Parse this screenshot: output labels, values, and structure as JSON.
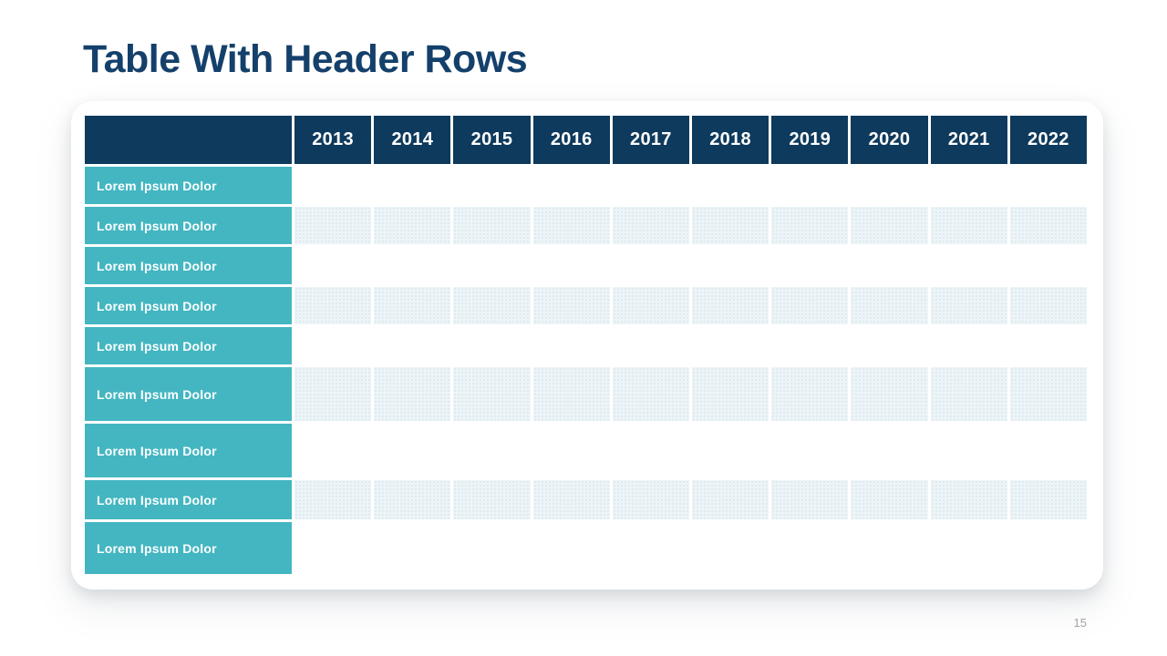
{
  "slide": {
    "title": "Table With Header Rows",
    "page_number": "15"
  },
  "table": {
    "corner_label": "",
    "years": [
      "2013",
      "2014",
      "2015",
      "2016",
      "2017",
      "2018",
      "2019",
      "2020",
      "2021",
      "2022"
    ],
    "rows": [
      {
        "label": "Lorem Ipsum Dolor",
        "striped": false,
        "values": [
          "",
          "",
          "",
          "",
          "",
          "",
          "",
          "",
          "",
          ""
        ]
      },
      {
        "label": "Lorem Ipsum Dolor",
        "striped": true,
        "values": [
          "",
          "",
          "",
          "",
          "",
          "",
          "",
          "",
          "",
          ""
        ]
      },
      {
        "label": "Lorem Ipsum Dolor",
        "striped": false,
        "values": [
          "",
          "",
          "",
          "",
          "",
          "",
          "",
          "",
          "",
          ""
        ]
      },
      {
        "label": "Lorem Ipsum Dolor",
        "striped": true,
        "values": [
          "",
          "",
          "",
          "",
          "",
          "",
          "",
          "",
          "",
          ""
        ]
      },
      {
        "label": "Lorem Ipsum Dolor",
        "striped": false,
        "values": [
          "",
          "",
          "",
          "",
          "",
          "",
          "",
          "",
          "",
          ""
        ]
      },
      {
        "label": "Lorem Ipsum Dolor",
        "striped": true,
        "values": [
          "",
          "",
          "",
          "",
          "",
          "",
          "",
          "",
          "",
          ""
        ]
      },
      {
        "label": "Lorem Ipsum Dolor",
        "striped": false,
        "values": [
          "",
          "",
          "",
          "",
          "",
          "",
          "",
          "",
          "",
          ""
        ]
      },
      {
        "label": "Lorem Ipsum Dolor",
        "striped": true,
        "values": [
          "",
          "",
          "",
          "",
          "",
          "",
          "",
          "",
          "",
          ""
        ]
      },
      {
        "label": "Lorem Ipsum Dolor",
        "striped": false,
        "values": [
          "",
          "",
          "",
          "",
          "",
          "",
          "",
          "",
          "",
          ""
        ]
      }
    ]
  },
  "colors": {
    "title": "#14406B",
    "header_bg": "#0E3A5D",
    "header_text": "#FFFFFF",
    "label_bg": "#43B6C1",
    "label_text": "#FFFFFF",
    "stripe_bg": "#EDF4F7",
    "card_bg": "#FFFFFF",
    "page_number": "#A3A3A3"
  }
}
